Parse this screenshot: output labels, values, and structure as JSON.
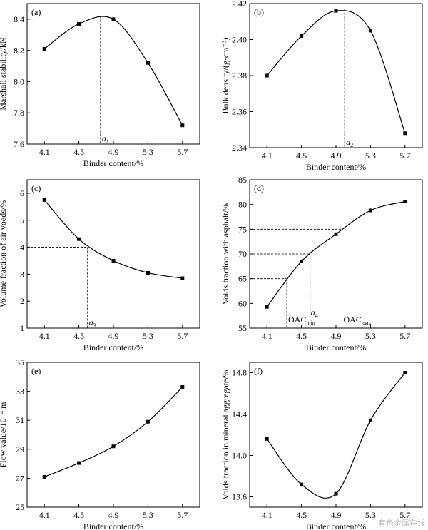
{
  "watermark": "有色金属在线",
  "chart_data": [
    {
      "type": "line",
      "panel_label": "(a)",
      "xlabel": "Binder content/%",
      "ylabel": "Marshall stability/kN",
      "x": [
        4.1,
        4.5,
        4.9,
        5.3,
        5.7
      ],
      "y": [
        8.21,
        8.37,
        8.4,
        8.12,
        7.72
      ],
      "xlim": [
        3.9,
        5.9
      ],
      "ylim": [
        7.6,
        8.5
      ],
      "xticks": [
        "4.1",
        "4.5",
        "4.9",
        "5.3",
        "5.7"
      ],
      "yticks": [
        "7.6",
        "7.8",
        "8.0",
        "8.2",
        "8.4"
      ],
      "annotations": [
        {
          "label": "a",
          "sub": "1",
          "x": 4.75,
          "y": 8.42
        }
      ]
    },
    {
      "type": "line",
      "panel_label": "(b)",
      "xlabel": "Binder content/%",
      "ylabel": "Bulk density/(g·cm⁻³)",
      "x": [
        4.1,
        4.5,
        4.9,
        5.3,
        5.7
      ],
      "y": [
        2.38,
        2.402,
        2.416,
        2.405,
        2.348
      ],
      "xlim": [
        3.9,
        5.9
      ],
      "ylim": [
        2.34,
        2.42
      ],
      "xticks": [
        "4.1",
        "4.5",
        "4.9",
        "5.3",
        "5.7"
      ],
      "yticks": [
        "2.34",
        "2.36",
        "2.38",
        "2.40",
        "2.42"
      ],
      "annotations": [
        {
          "label": "a",
          "sub": "2",
          "x": 5.0,
          "y": 2.417
        }
      ]
    },
    {
      "type": "line",
      "panel_label": "(c)",
      "xlabel": "Binder content/%",
      "ylabel": "Volume fraction of air voeds/%",
      "x": [
        4.1,
        4.5,
        4.9,
        5.3,
        5.7
      ],
      "y": [
        5.75,
        4.3,
        3.5,
        3.05,
        2.85
      ],
      "xlim": [
        3.9,
        5.9
      ],
      "ylim": [
        1,
        6.5
      ],
      "xticks": [
        "4.1",
        "4.5",
        "4.9",
        "5.3",
        "5.7"
      ],
      "yticks": [
        "1",
        "2",
        "3",
        "4",
        "5",
        "6"
      ],
      "annotations": [
        {
          "label": "a",
          "sub": "3",
          "x": 4.6,
          "y": 4.0
        }
      ]
    },
    {
      "type": "line",
      "panel_label": "(d)",
      "xlabel": "Binder content/%",
      "ylabel": "Voids fraction with asphalt/%",
      "x": [
        4.1,
        4.5,
        4.9,
        5.3,
        5.7
      ],
      "y": [
        59.3,
        68.5,
        74.0,
        78.8,
        80.6
      ],
      "xlim": [
        3.9,
        5.9
      ],
      "ylim": [
        55,
        85
      ],
      "xticks": [
        "4.1",
        "4.5",
        "4.9",
        "5.3",
        "5.7"
      ],
      "yticks": [
        "55",
        "60",
        "65",
        "70",
        "75",
        "80",
        "85"
      ],
      "annotations": [
        {
          "label": "OAC",
          "sub": "min",
          "x": 4.33,
          "y": 65
        },
        {
          "label": "a",
          "sub": "4",
          "x": 4.6,
          "y": 70
        },
        {
          "label": "OAC",
          "sub": "max",
          "x": 4.97,
          "y": 75
        }
      ]
    },
    {
      "type": "line",
      "panel_label": "(e)",
      "xlabel": "Binder content/%",
      "ylabel": "Flow value/10⁻⁴ m",
      "x": [
        4.1,
        4.5,
        4.9,
        5.3,
        5.7
      ],
      "y": [
        27.1,
        28.05,
        29.2,
        30.9,
        33.3
      ],
      "xlim": [
        3.9,
        5.9
      ],
      "ylim": [
        25,
        35
      ],
      "xticks": [
        "4.1",
        "4.5",
        "4.9",
        "5.3",
        "5.7"
      ],
      "yticks": [
        "25",
        "27",
        "29",
        "31",
        "33",
        "35"
      ],
      "annotations": []
    },
    {
      "type": "line",
      "panel_label": "(f)",
      "xlabel": "Binder content/%",
      "ylabel": "Voids fraction in mineral aggregate/%",
      "x": [
        4.1,
        4.5,
        4.9,
        5.3,
        5.7
      ],
      "y": [
        14.16,
        13.72,
        13.63,
        14.34,
        14.8
      ],
      "xlim": [
        3.9,
        5.9
      ],
      "ylim": [
        13.5,
        14.9
      ],
      "xticks": [
        "4.1",
        "4.5",
        "4.9",
        "5.3",
        "5.7"
      ],
      "yticks": [
        "13.6",
        "14.0",
        "14.4",
        "14.8"
      ],
      "annotations": []
    }
  ]
}
